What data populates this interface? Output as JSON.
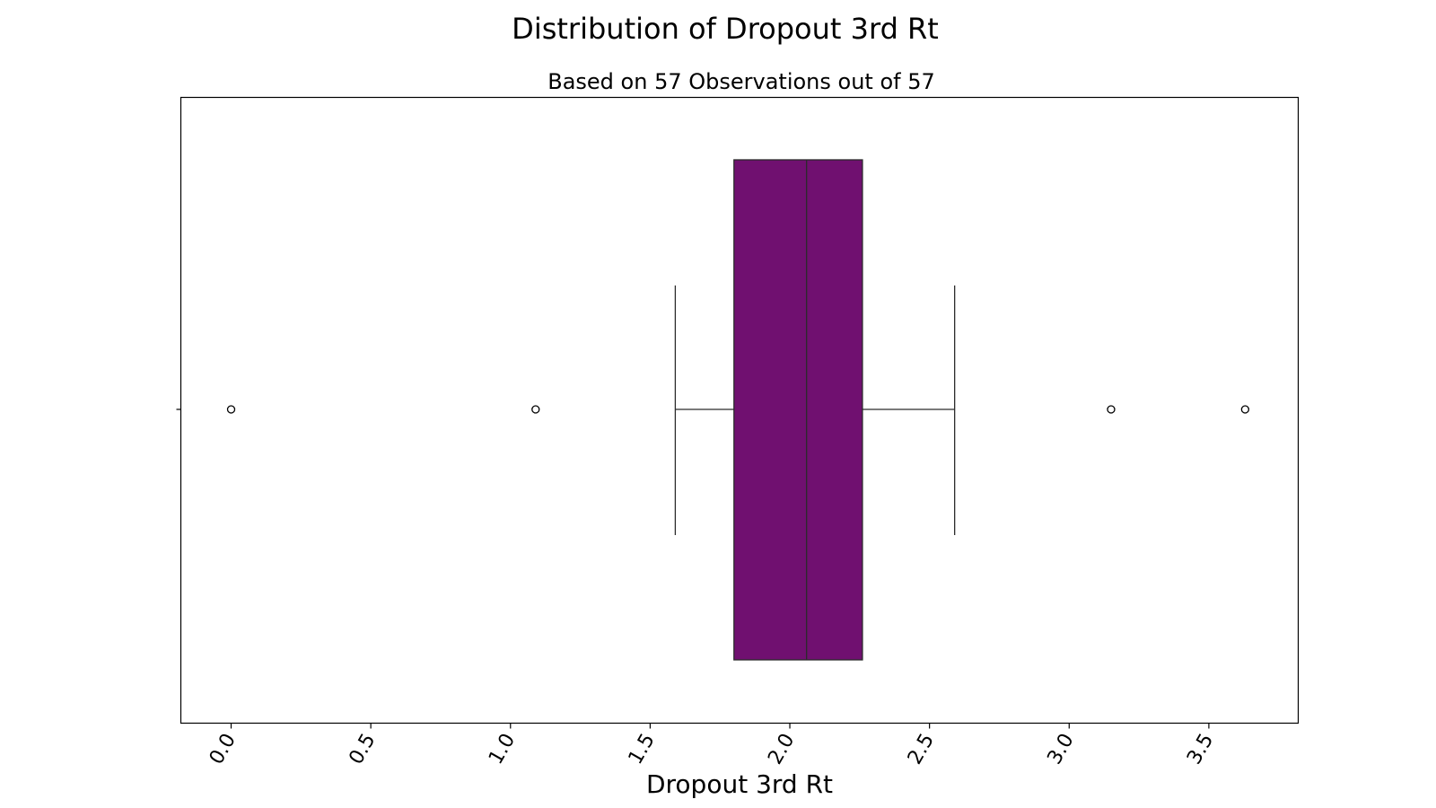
{
  "chart_data": {
    "type": "box",
    "title": "Distribution of Dropout 3rd Rt",
    "subtitle": "Based on 57 Observations out of 57",
    "xlabel": "Dropout 3rd Rt",
    "ylabel": "",
    "orientation": "horizontal",
    "xlim": [
      -0.18,
      3.82
    ],
    "xticks": [
      0.0,
      0.5,
      1.0,
      1.5,
      2.0,
      2.5,
      3.0,
      3.5
    ],
    "xtick_labels": [
      "0.0",
      "0.5",
      "1.0",
      "1.5",
      "2.0",
      "2.5",
      "3.0",
      "3.5"
    ],
    "box_color": "#701070",
    "box": {
      "whisker_low": 1.59,
      "q1": 1.8,
      "median": 2.06,
      "q3": 2.26,
      "whisker_high": 2.59
    },
    "outliers": [
      0.0,
      1.09,
      3.15,
      3.63
    ],
    "grid": false
  }
}
